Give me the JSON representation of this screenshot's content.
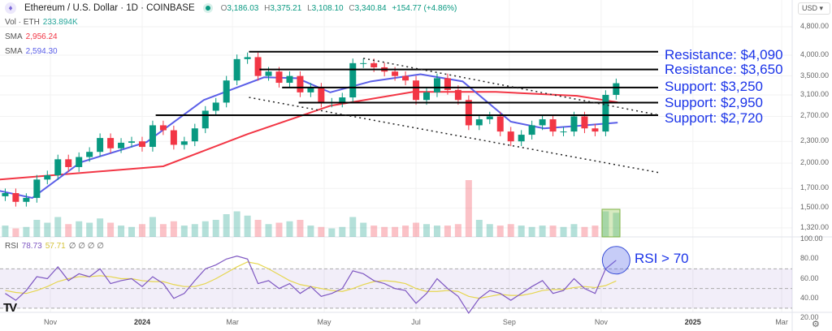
{
  "header": {
    "symbol": "Ethereum / U.S. Dollar · 1D · COINBASE",
    "open_label": "O",
    "open": "3,186.03",
    "high_label": "H",
    "high": "3,375.21",
    "low_label": "L",
    "low": "3,108.10",
    "close_label": "C",
    "close": "3,340.84",
    "change": "+154.77 (+4.86%)",
    "currency": "USD"
  },
  "indicators": {
    "vol_label": "Vol · ETH",
    "vol_value": "233.894K",
    "sma1_label": "SMA",
    "sma1_value": "2,956.24",
    "sma1_color": "#f23645",
    "sma2_label": "SMA",
    "sma2_value": "2,594.30",
    "sma2_color": "#5b5fe8",
    "rsi_label": "RSI",
    "rsi_value": "78.73",
    "rsi_ma_value": "57.71",
    "rsi_extra": "∅ ∅ ∅ ∅",
    "rsi_color": "#7e57c2",
    "rsi_ma_color": "#e6d64f"
  },
  "annotations": {
    "r1": "Resistance: $4,090",
    "r2": "Resistance: $3,650",
    "s1": "Support: $3,250",
    "s2": "Support: $2,950",
    "s3": "Support: $2,720",
    "rsi_note": "RSI > 70",
    "color": "#1a33e8"
  },
  "chart_data": {
    "type": "candlestick",
    "scale": "log",
    "price_ticks": [
      "4,800.00",
      "4,000.00",
      "3,500.00",
      "3,100.00",
      "2,700.00",
      "2,300.00",
      "2,000.00",
      "1,700.00",
      "1,500.00",
      "1,320.00"
    ],
    "rsi_ticks": [
      "100.00",
      "80.00",
      "60.00",
      "40.00",
      "20.00"
    ],
    "time_labels": [
      {
        "label": "Nov",
        "date": "2023-11-01"
      },
      {
        "label": "2024",
        "date": "2024-01-01",
        "year": true
      },
      {
        "label": "Mar",
        "date": "2024-03-01"
      },
      {
        "label": "May",
        "date": "2024-05-01"
      },
      {
        "label": "Jul",
        "date": "2024-07-01"
      },
      {
        "label": "Sep",
        "date": "2024-09-01"
      },
      {
        "label": "Nov",
        "date": "2024-11-01"
      },
      {
        "label": "2025",
        "date": "2025-01-01",
        "year": true
      },
      {
        "label": "Mar",
        "date": "2025-03-01"
      }
    ],
    "weekly_start": "2023-10-02",
    "closes": [
      1650,
      1560,
      1600,
      1800,
      1850,
      2050,
      1950,
      2080,
      2150,
      2350,
      2200,
      2280,
      2300,
      2220,
      2550,
      2470,
      2250,
      2300,
      2500,
      2800,
      2950,
      3400,
      3900,
      3950,
      3500,
      3600,
      3350,
      3500,
      3150,
      3250,
      2950,
      2950,
      3050,
      3800,
      3800,
      3700,
      3600,
      3500,
      3400,
      3000,
      3150,
      3450,
      3200,
      3000,
      2550,
      2650,
      2700,
      2450,
      2300,
      2400,
      2550,
      2650,
      2450,
      2450,
      2700,
      2500,
      2450,
      3100,
      3340.84
    ],
    "volume": [
      40,
      30,
      35,
      60,
      50,
      70,
      45,
      55,
      50,
      65,
      50,
      40,
      35,
      45,
      70,
      45,
      55,
      40,
      45,
      55,
      60,
      80,
      90,
      75,
      60,
      45,
      50,
      55,
      60,
      40,
      35,
      30,
      35,
      70,
      50,
      40,
      35,
      35,
      40,
      50,
      45,
      40,
      40,
      45,
      200,
      60,
      45,
      40,
      45,
      40,
      35,
      40,
      40,
      35,
      45,
      35,
      40,
      90,
      85
    ],
    "rsi": [
      45,
      38,
      48,
      62,
      60,
      72,
      58,
      65,
      62,
      70,
      55,
      58,
      60,
      52,
      62,
      55,
      40,
      45,
      58,
      70,
      74,
      80,
      83,
      80,
      55,
      58,
      50,
      55,
      45,
      52,
      42,
      45,
      50,
      68,
      65,
      58,
      55,
      50,
      48,
      35,
      45,
      60,
      50,
      42,
      25,
      40,
      48,
      45,
      38,
      45,
      52,
      58,
      45,
      48,
      60,
      50,
      45,
      70,
      78.73
    ],
    "rsi_ma": [
      48,
      46,
      45,
      48,
      52,
      57,
      60,
      62,
      62,
      63,
      62,
      60,
      60,
      58,
      57,
      57,
      54,
      52,
      52,
      55,
      60,
      66,
      72,
      77,
      75,
      70,
      64,
      58,
      54,
      52,
      50,
      48,
      47,
      50,
      54,
      57,
      58,
      57,
      55,
      50,
      47,
      47,
      48,
      47,
      42,
      40,
      42,
      44,
      43,
      43,
      45,
      48,
      49,
      49,
      51,
      52,
      51,
      53,
      57.71
    ],
    "sma200": [
      [
        "2023-09-28",
        1800
      ],
      [
        "2024-01-15",
        1960
      ],
      [
        "2024-03-11",
        2410
      ],
      [
        "2024-05-05",
        2890
      ],
      [
        "2024-06-29",
        3160
      ],
      [
        "2024-08-23",
        3160
      ],
      [
        "2024-10-16",
        3080
      ],
      [
        "2024-11-12",
        2956.24
      ]
    ],
    "sma50": [
      [
        "2023-09-28",
        1675
      ],
      [
        "2023-10-20",
        1600
      ],
      [
        "2023-11-21",
        2010
      ],
      [
        "2024-01-04",
        2290
      ],
      [
        "2024-02-11",
        3000
      ],
      [
        "2024-03-22",
        3470
      ],
      [
        "2024-04-13",
        3450
      ],
      [
        "2024-05-05",
        3150
      ],
      [
        "2024-06-01",
        3380
      ],
      [
        "2024-07-04",
        3540
      ],
      [
        "2024-08-01",
        3380
      ],
      [
        "2024-09-02",
        2610
      ],
      [
        "2024-09-24",
        2500
      ],
      [
        "2024-10-16",
        2540
      ],
      [
        "2024-11-12",
        2594.3
      ]
    ],
    "levels": [
      {
        "price": 4090,
        "from": "2024-03-12"
      },
      {
        "price": 3650,
        "from": "2024-03-19"
      },
      {
        "price": 3250,
        "from": "2024-04-03"
      },
      {
        "price": 2950,
        "from": "2024-04-14"
      },
      {
        "price": 2720,
        "from": "2024-01-10"
      }
    ],
    "trendlines": [
      {
        "from": [
          "2024-05-27",
          3920
        ],
        "to": [
          "2024-12-10",
          2720
        ]
      },
      {
        "from": [
          "2024-03-12",
          3050
        ],
        "to": [
          "2024-12-10",
          1880
        ]
      }
    ],
    "rsi_bands": [
      30,
      50,
      70
    ],
    "colors": {
      "up": "#089981",
      "down": "#f23645"
    }
  }
}
